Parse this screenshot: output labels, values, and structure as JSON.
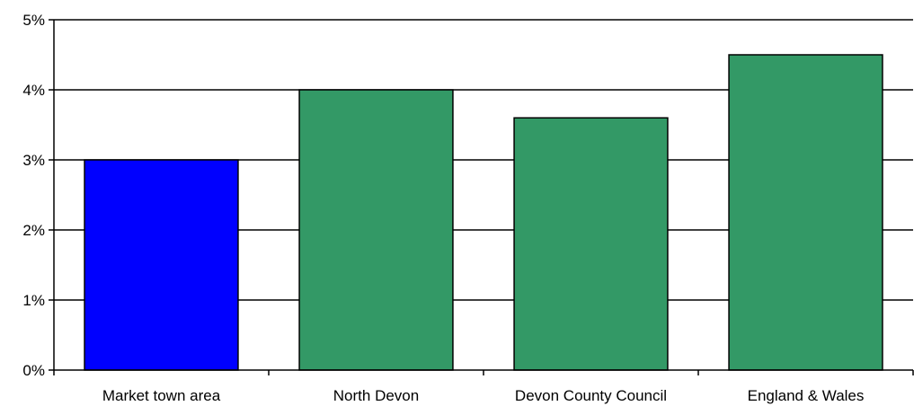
{
  "chart_data": {
    "type": "bar",
    "title": "",
    "xlabel": "",
    "ylabel": "",
    "categories": [
      "Market town area",
      "North Devon",
      "Devon County Council",
      "England & Wales"
    ],
    "values": [
      3.0,
      4.0,
      3.6,
      4.5
    ],
    "bar_colors": [
      "#0000ff",
      "#339966",
      "#339966",
      "#339966"
    ],
    "ylim": [
      0,
      5
    ],
    "yticks": [
      0,
      1,
      2,
      3,
      4,
      5
    ],
    "ytick_labels": [
      "0%",
      "1%",
      "2%",
      "3%",
      "4%",
      "5%"
    ],
    "grid": true,
    "legend": "none"
  }
}
